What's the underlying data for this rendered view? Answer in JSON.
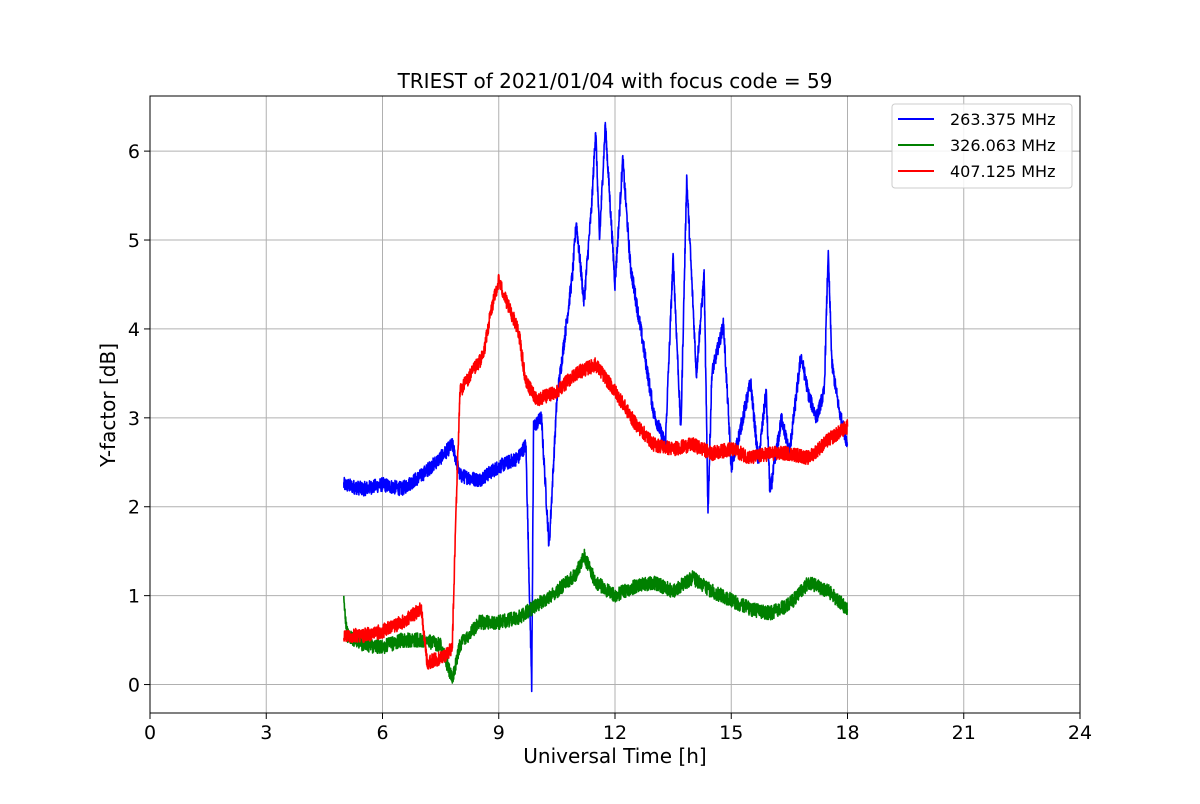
{
  "chart_data": {
    "type": "line",
    "title": "TRIEST of 2021/01/04 with focus code = 59",
    "xlabel": "Universal Time [h]",
    "ylabel": "Y-factor [dB]",
    "xlim": [
      0,
      24
    ],
    "ylim": [
      -0.32,
      6.62
    ],
    "x_ticks": [
      0,
      3,
      6,
      9,
      12,
      15,
      18,
      21,
      24
    ],
    "y_ticks": [
      0,
      1,
      2,
      3,
      4,
      5,
      6
    ],
    "x_tick_labels": [
      "0",
      "3",
      "6",
      "9",
      "12",
      "15",
      "18",
      "21",
      "24"
    ],
    "y_tick_labels": [
      "0",
      "1",
      "2",
      "3",
      "4",
      "5",
      "6"
    ],
    "grid": true,
    "legend_position": "top-right",
    "series": [
      {
        "name": "263.375 MHz",
        "color": "#0000ff",
        "points": [
          [
            5.0,
            2.25
          ],
          [
            5.5,
            2.2
          ],
          [
            6.0,
            2.25
          ],
          [
            6.5,
            2.2
          ],
          [
            7.0,
            2.35
          ],
          [
            7.5,
            2.55
          ],
          [
            7.8,
            2.7
          ],
          [
            8.0,
            2.35
          ],
          [
            8.5,
            2.3
          ],
          [
            9.0,
            2.45
          ],
          [
            9.5,
            2.55
          ],
          [
            9.7,
            2.7
          ],
          [
            9.85,
            0.0
          ],
          [
            9.9,
            2.9
          ],
          [
            10.1,
            3.0
          ],
          [
            10.3,
            1.55
          ],
          [
            10.5,
            3.2
          ],
          [
            10.7,
            3.9
          ],
          [
            10.9,
            4.6
          ],
          [
            11.0,
            5.2
          ],
          [
            11.2,
            4.3
          ],
          [
            11.4,
            5.4
          ],
          [
            11.5,
            6.25
          ],
          [
            11.6,
            5.0
          ],
          [
            11.75,
            6.3
          ],
          [
            12.0,
            4.5
          ],
          [
            12.2,
            5.9
          ],
          [
            12.4,
            4.7
          ],
          [
            12.7,
            3.9
          ],
          [
            13.0,
            3.05
          ],
          [
            13.3,
            2.7
          ],
          [
            13.5,
            4.8
          ],
          [
            13.7,
            2.85
          ],
          [
            13.85,
            5.7
          ],
          [
            14.1,
            3.5
          ],
          [
            14.3,
            4.6
          ],
          [
            14.4,
            1.95
          ],
          [
            14.5,
            3.5
          ],
          [
            14.8,
            4.05
          ],
          [
            15.0,
            2.45
          ],
          [
            15.2,
            2.8
          ],
          [
            15.5,
            3.4
          ],
          [
            15.7,
            2.5
          ],
          [
            15.9,
            3.3
          ],
          [
            16.0,
            2.15
          ],
          [
            16.3,
            3.0
          ],
          [
            16.5,
            2.6
          ],
          [
            16.8,
            3.7
          ],
          [
            17.0,
            3.25
          ],
          [
            17.2,
            3.0
          ],
          [
            17.4,
            3.3
          ],
          [
            17.5,
            4.85
          ],
          [
            17.6,
            3.6
          ],
          [
            17.8,
            3.05
          ],
          [
            18.0,
            2.7
          ]
        ]
      },
      {
        "name": "326.063 MHz",
        "color": "#008000",
        "points": [
          [
            5.0,
            0.93
          ],
          [
            5.1,
            0.55
          ],
          [
            5.5,
            0.45
          ],
          [
            6.0,
            0.42
          ],
          [
            6.5,
            0.5
          ],
          [
            7.0,
            0.5
          ],
          [
            7.5,
            0.45
          ],
          [
            7.8,
            0.05
          ],
          [
            8.0,
            0.45
          ],
          [
            8.5,
            0.7
          ],
          [
            9.0,
            0.7
          ],
          [
            9.5,
            0.75
          ],
          [
            10.0,
            0.9
          ],
          [
            10.5,
            1.05
          ],
          [
            11.0,
            1.25
          ],
          [
            11.2,
            1.45
          ],
          [
            11.5,
            1.15
          ],
          [
            12.0,
            1.0
          ],
          [
            12.5,
            1.1
          ],
          [
            13.0,
            1.15
          ],
          [
            13.5,
            1.05
          ],
          [
            14.0,
            1.2
          ],
          [
            14.5,
            1.05
          ],
          [
            15.0,
            0.95
          ],
          [
            15.5,
            0.85
          ],
          [
            16.0,
            0.8
          ],
          [
            16.5,
            0.9
          ],
          [
            17.0,
            1.15
          ],
          [
            17.5,
            1.05
          ],
          [
            18.0,
            0.85
          ]
        ]
      },
      {
        "name": "407.125 MHz",
        "color": "#ff0000",
        "points": [
          [
            5.0,
            0.55
          ],
          [
            5.5,
            0.55
          ],
          [
            6.0,
            0.6
          ],
          [
            6.5,
            0.7
          ],
          [
            7.0,
            0.85
          ],
          [
            7.15,
            0.25
          ],
          [
            7.5,
            0.3
          ],
          [
            7.8,
            0.4
          ],
          [
            7.9,
            2.0
          ],
          [
            8.0,
            3.3
          ],
          [
            8.3,
            3.5
          ],
          [
            8.6,
            3.7
          ],
          [
            8.8,
            4.2
          ],
          [
            9.0,
            4.55
          ],
          [
            9.2,
            4.3
          ],
          [
            9.5,
            4.0
          ],
          [
            9.7,
            3.4
          ],
          [
            10.0,
            3.2
          ],
          [
            10.5,
            3.3
          ],
          [
            11.0,
            3.5
          ],
          [
            11.5,
            3.6
          ],
          [
            12.0,
            3.3
          ],
          [
            12.5,
            2.95
          ],
          [
            13.0,
            2.7
          ],
          [
            13.5,
            2.65
          ],
          [
            14.0,
            2.7
          ],
          [
            14.5,
            2.6
          ],
          [
            15.0,
            2.65
          ],
          [
            15.5,
            2.55
          ],
          [
            16.0,
            2.6
          ],
          [
            16.5,
            2.6
          ],
          [
            17.0,
            2.55
          ],
          [
            17.5,
            2.75
          ],
          [
            18.0,
            2.9
          ]
        ]
      }
    ]
  }
}
